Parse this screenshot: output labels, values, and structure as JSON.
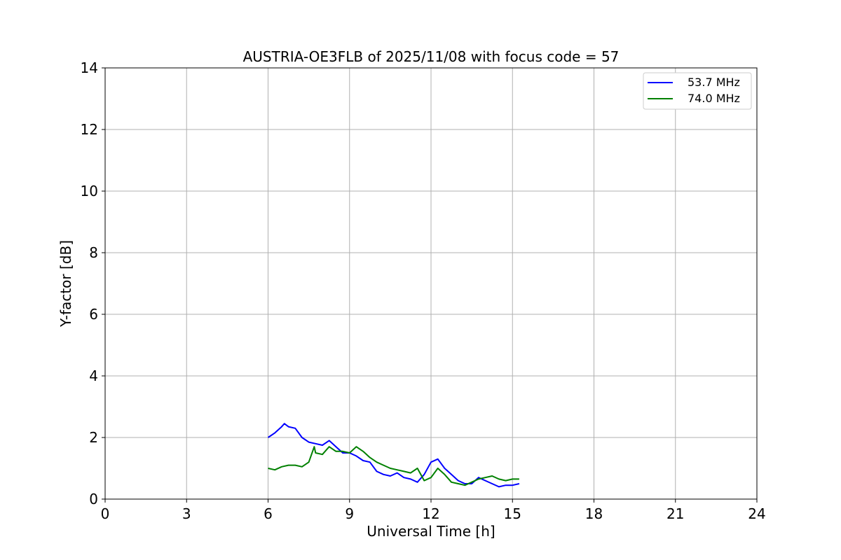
{
  "chart_data": {
    "type": "line",
    "title": "AUSTRIA-OE3FLB of 2025/11/08 with focus code = 57",
    "xlabel": "Universal Time [h]",
    "ylabel": "Y-factor [dB]",
    "xlim": [
      0,
      24
    ],
    "ylim": [
      0,
      14
    ],
    "xticks": [
      0,
      3,
      6,
      9,
      12,
      15,
      18,
      21,
      24
    ],
    "yticks": [
      0,
      2,
      4,
      6,
      8,
      10,
      12,
      14
    ],
    "xtick_labels": [
      "0",
      "3",
      "6",
      "9",
      "12",
      "15",
      "18",
      "21",
      "24"
    ],
    "ytick_labels": [
      "0",
      "2",
      "4",
      "6",
      "8",
      "10",
      "12",
      "14"
    ],
    "grid": true,
    "legend_position": "top-right",
    "series": [
      {
        "name": "53.7 MHz",
        "color": "#0000ff",
        "x": [
          6.0,
          6.25,
          6.5,
          6.6,
          6.75,
          7.0,
          7.25,
          7.5,
          7.75,
          8.0,
          8.25,
          8.5,
          8.75,
          9.0,
          9.25,
          9.5,
          9.75,
          10.0,
          10.25,
          10.5,
          10.75,
          11.0,
          11.25,
          11.5,
          11.75,
          12.0,
          12.25,
          12.5,
          12.75,
          13.0,
          13.25,
          13.5,
          13.75,
          14.0,
          14.25,
          14.5,
          14.75,
          15.0,
          15.25
        ],
        "y": [
          2.0,
          2.15,
          2.35,
          2.45,
          2.35,
          2.3,
          2.0,
          1.85,
          1.8,
          1.75,
          1.9,
          1.7,
          1.5,
          1.5,
          1.4,
          1.25,
          1.2,
          0.9,
          0.8,
          0.75,
          0.85,
          0.7,
          0.65,
          0.55,
          0.8,
          1.2,
          1.3,
          1.0,
          0.8,
          0.6,
          0.5,
          0.5,
          0.7,
          0.6,
          0.5,
          0.4,
          0.45,
          0.45,
          0.5
        ]
      },
      {
        "name": "74.0 MHz",
        "color": "#008000",
        "x": [
          6.0,
          6.25,
          6.5,
          6.75,
          7.0,
          7.25,
          7.5,
          7.7,
          7.75,
          8.0,
          8.25,
          8.5,
          8.75,
          9.0,
          9.25,
          9.5,
          9.75,
          10.0,
          10.25,
          10.5,
          10.75,
          11.0,
          11.25,
          11.5,
          11.75,
          12.0,
          12.25,
          12.5,
          12.75,
          13.0,
          13.25,
          13.5,
          13.75,
          14.0,
          14.25,
          14.5,
          14.75,
          15.0,
          15.25
        ],
        "y": [
          1.0,
          0.95,
          1.05,
          1.1,
          1.1,
          1.05,
          1.2,
          1.7,
          1.5,
          1.45,
          1.7,
          1.55,
          1.55,
          1.5,
          1.7,
          1.55,
          1.35,
          1.2,
          1.1,
          1.0,
          0.95,
          0.9,
          0.85,
          1.0,
          0.6,
          0.7,
          1.0,
          0.8,
          0.55,
          0.5,
          0.45,
          0.55,
          0.65,
          0.7,
          0.75,
          0.65,
          0.6,
          0.65,
          0.65
        ]
      }
    ]
  }
}
